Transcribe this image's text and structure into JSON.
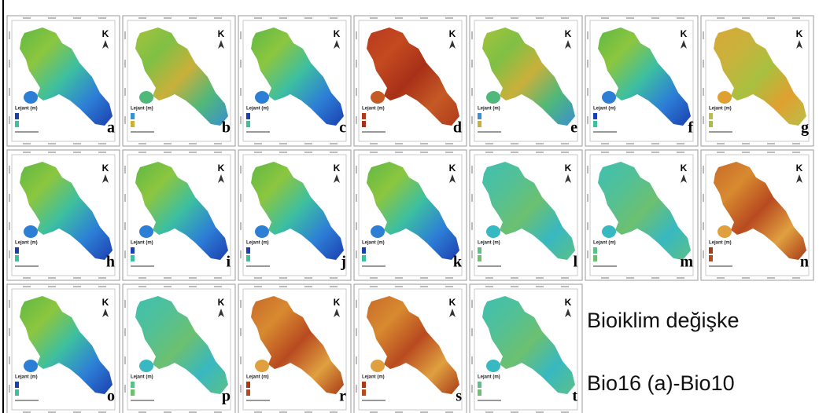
{
  "panels": [
    {
      "label": "a",
      "north": "K",
      "legend_title": "Lejant (m)",
      "color": "green"
    },
    {
      "label": "b",
      "north": "K",
      "legend_title": "Lejant (m)",
      "color": "yellowgreen"
    },
    {
      "label": "c",
      "north": "K",
      "legend_title": "Lejant (m)",
      "color": "green"
    },
    {
      "label": "d",
      "north": "K",
      "legend_title": "Lejant (m)",
      "color": "red"
    },
    {
      "label": "e",
      "north": "K",
      "legend_title": "Lejant (m)",
      "color": "yellowgreen"
    },
    {
      "label": "f",
      "north": "K",
      "legend_title": "Lejant (m)",
      "color": "green"
    },
    {
      "label": "g",
      "north": "K",
      "legend_title": "Lejant (m)",
      "color": "yellow"
    },
    {
      "label": "h",
      "north": "K",
      "legend_title": "Lejant (m)",
      "color": "green"
    },
    {
      "label": "i",
      "north": "K",
      "legend_title": "Lejant (m)",
      "color": "green"
    },
    {
      "label": "j",
      "north": "K",
      "legend_title": "Lejant (m)",
      "color": "green"
    },
    {
      "label": "k",
      "north": "K",
      "legend_title": "Lejant (m)",
      "color": "green"
    },
    {
      "label": "l",
      "north": "K",
      "legend_title": "Lejant (m)",
      "color": "teal"
    },
    {
      "label": "m",
      "north": "K",
      "legend_title": "Lejant (m)",
      "color": "teal"
    },
    {
      "label": "n",
      "north": "K",
      "legend_title": "Lejant (m)",
      "color": "orange"
    },
    {
      "label": "o",
      "north": "K",
      "legend_title": "Lejant (m)",
      "color": "green"
    },
    {
      "label": "p",
      "north": "K",
      "legend_title": "Lejant (m)",
      "color": "teal"
    },
    {
      "label": "r",
      "north": "K",
      "legend_title": "Lejant (m)",
      "color": "orange"
    },
    {
      "label": "s",
      "north": "K",
      "legend_title": "Lejant (m)",
      "color": "orange"
    },
    {
      "label": "t",
      "north": "K",
      "legend_title": "Lejant (m)",
      "color": "teal"
    }
  ],
  "caption": [
    "Bioiklim değişke",
    "Bio16 (a)-Bio10"
  ]
}
